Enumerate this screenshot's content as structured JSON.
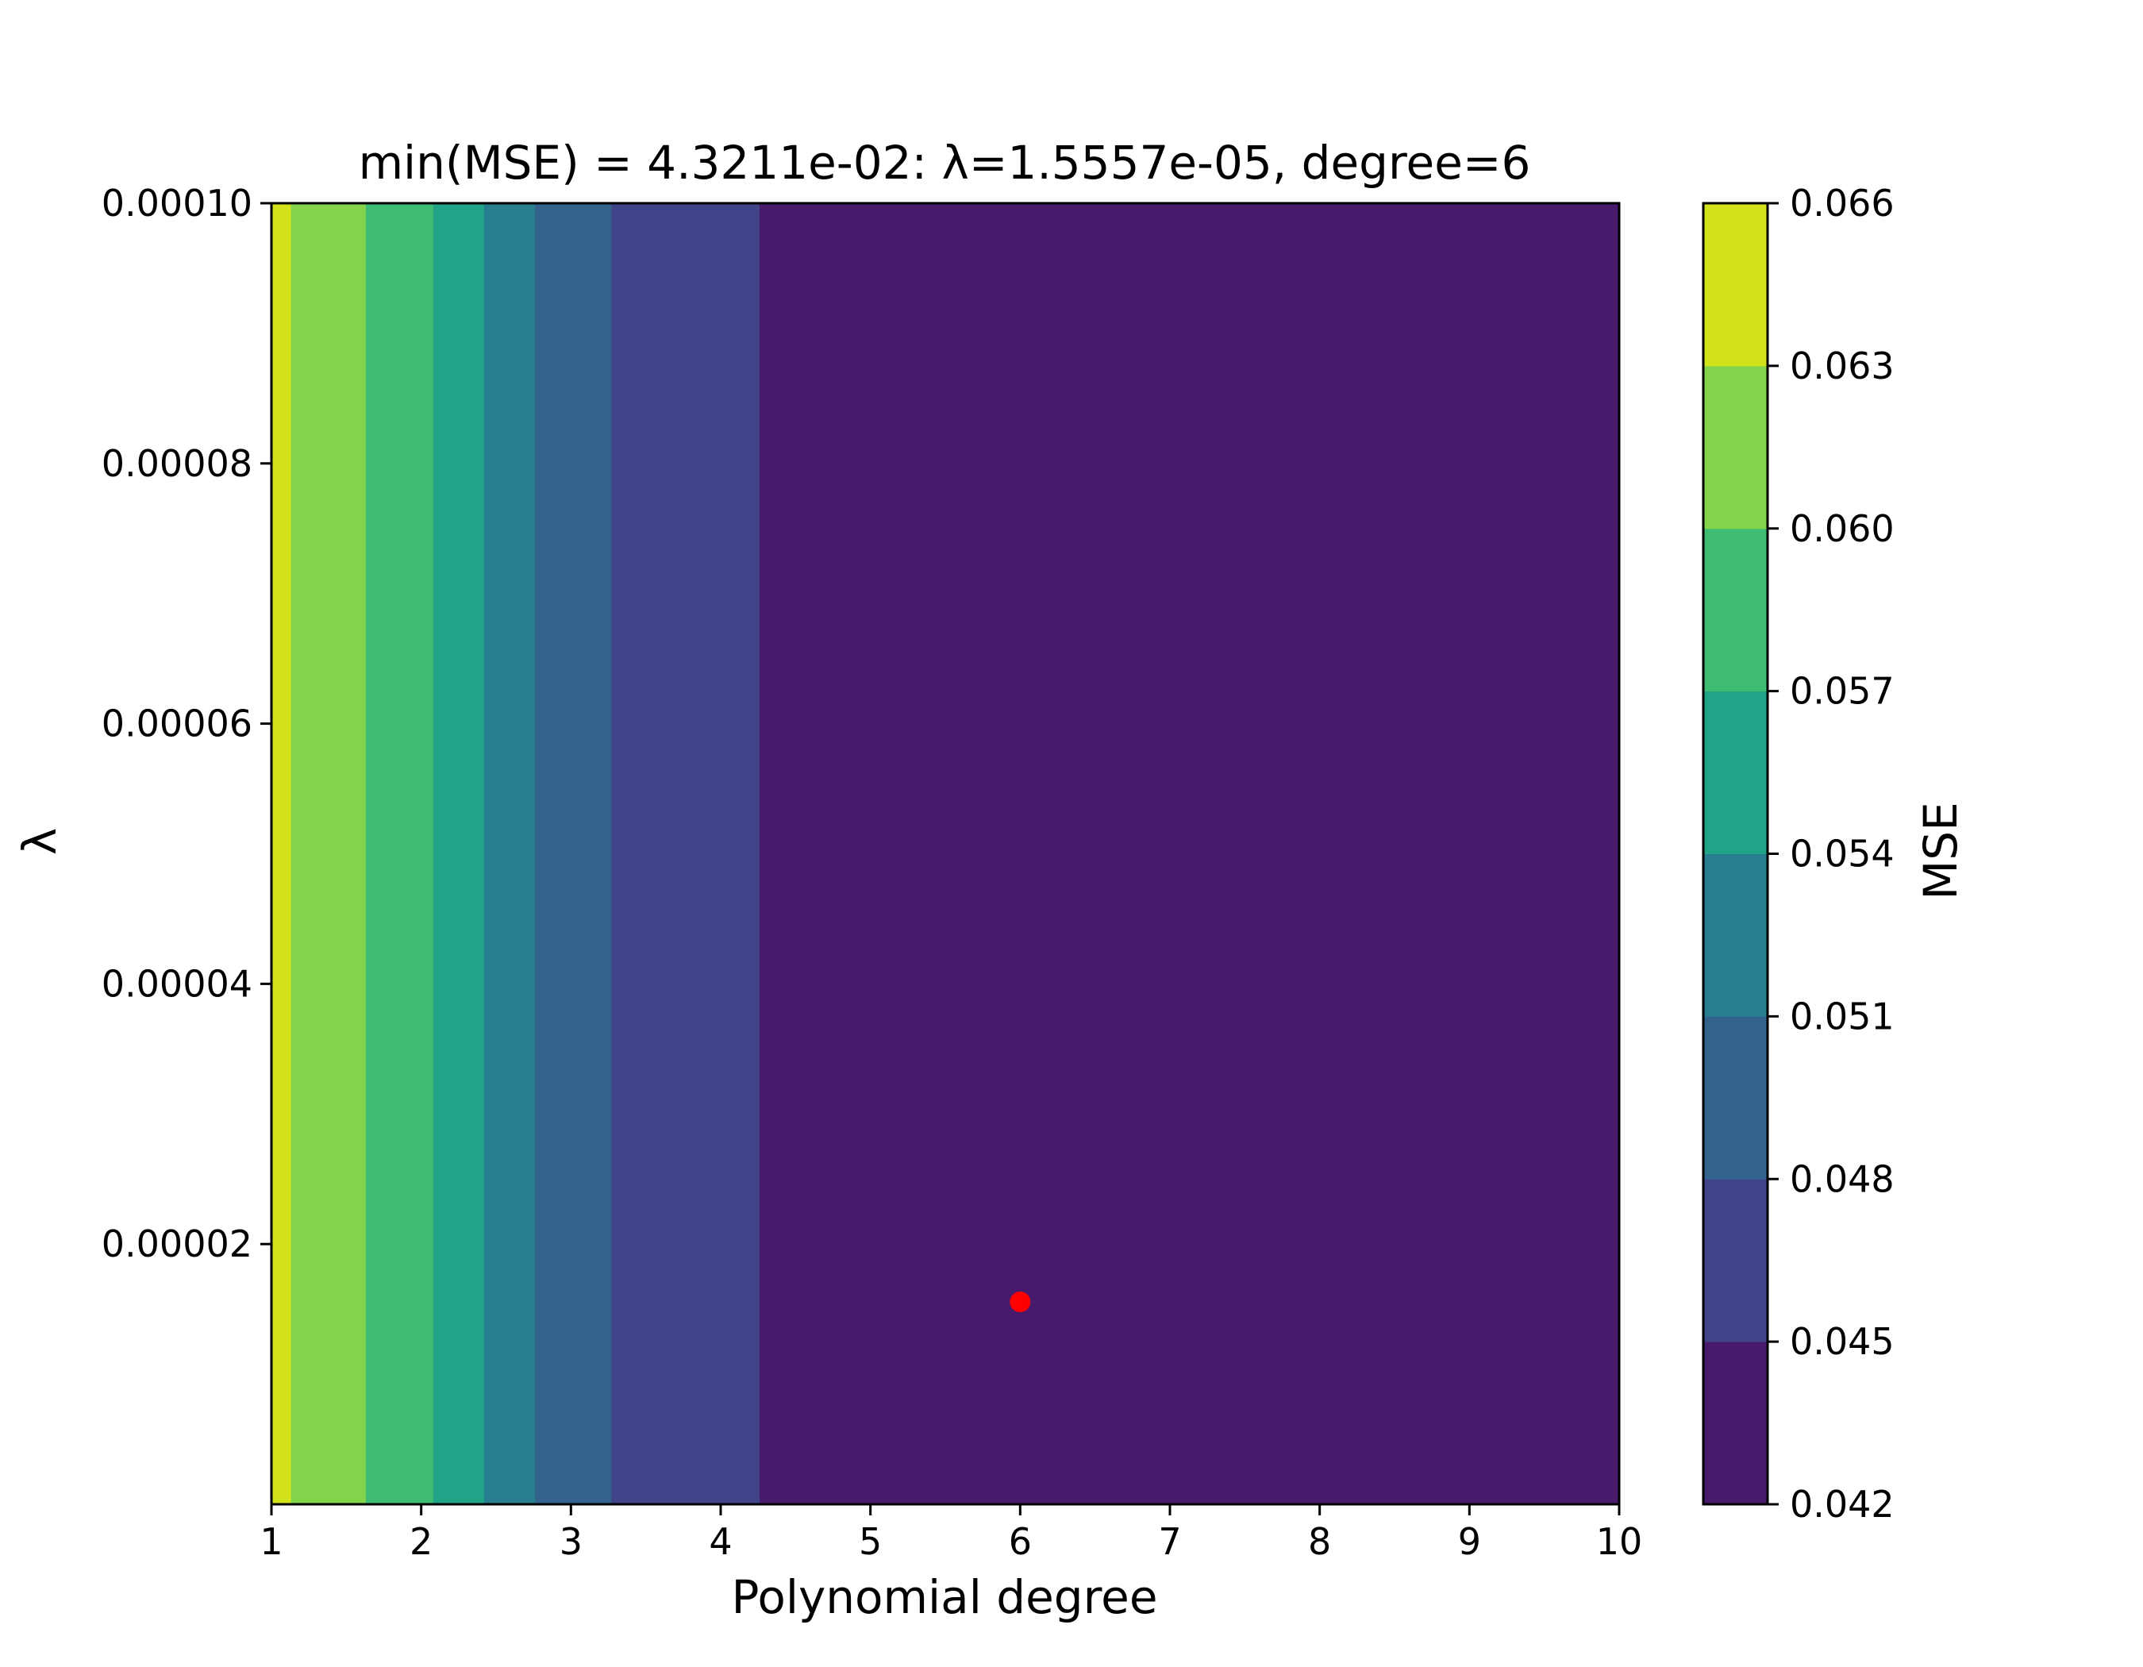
{
  "chart_data": {
    "type": "heatmap",
    "subtype": "filled-contour",
    "title": "min(MSE) = 4.3211e-02: λ=1.5557e-05, degree=6",
    "xlabel": "Polynomial degree",
    "ylabel": "λ",
    "xlim": [
      1,
      10
    ],
    "ylim": [
      0,
      0.0001
    ],
    "x_ticks": [
      1,
      2,
      3,
      4,
      5,
      6,
      7,
      8,
      9,
      10
    ],
    "x_tick_labels": [
      "1",
      "2",
      "3",
      "4",
      "5",
      "6",
      "7",
      "8",
      "9",
      "10"
    ],
    "y_ticks": [
      2e-05,
      4e-05,
      6e-05,
      8e-05,
      0.0001
    ],
    "y_tick_labels": [
      "0.00002",
      "0.00004",
      "0.00006",
      "0.00008",
      "0.00010"
    ],
    "bands": [
      {
        "x_from": 1.0,
        "x_to": 1.13,
        "level": [
          0.063,
          0.066
        ],
        "color": "#d2e21b"
      },
      {
        "x_from": 1.13,
        "x_to": 1.63,
        "level": [
          0.06,
          0.063
        ],
        "color": "#84d44b"
      },
      {
        "x_from": 1.63,
        "x_to": 2.08,
        "level": [
          0.057,
          0.06
        ],
        "color": "#3fbc73"
      },
      {
        "x_from": 2.08,
        "x_to": 2.42,
        "level": [
          0.054,
          0.057
        ],
        "color": "#20a386"
      },
      {
        "x_from": 2.42,
        "x_to": 2.76,
        "level": [
          0.051,
          0.054
        ],
        "color": "#287d8e"
      },
      {
        "x_from": 2.76,
        "x_to": 3.27,
        "level": [
          0.048,
          0.051
        ],
        "color": "#33638d"
      },
      {
        "x_from": 3.27,
        "x_to": 4.26,
        "level": [
          0.045,
          0.048
        ],
        "color": "#404387"
      },
      {
        "x_from": 4.26,
        "x_to": 10.0,
        "level": [
          0.042,
          0.045
        ],
        "color": "#481a6c"
      }
    ],
    "minimum_marker": {
      "x": 6,
      "y": 1.5557e-05,
      "color": "#ff0000"
    },
    "colorbar": {
      "label": "MSE",
      "levels": [
        0.042,
        0.045,
        0.048,
        0.051,
        0.054,
        0.057,
        0.06,
        0.063,
        0.066
      ],
      "tick_labels": [
        "0.042",
        "0.045",
        "0.048",
        "0.051",
        "0.054",
        "0.057",
        "0.060",
        "0.063",
        "0.066"
      ],
      "colors": [
        "#481a6c",
        "#404387",
        "#33638d",
        "#287d8e",
        "#20a386",
        "#3fbc73",
        "#84d44b",
        "#d2e21b"
      ]
    }
  }
}
